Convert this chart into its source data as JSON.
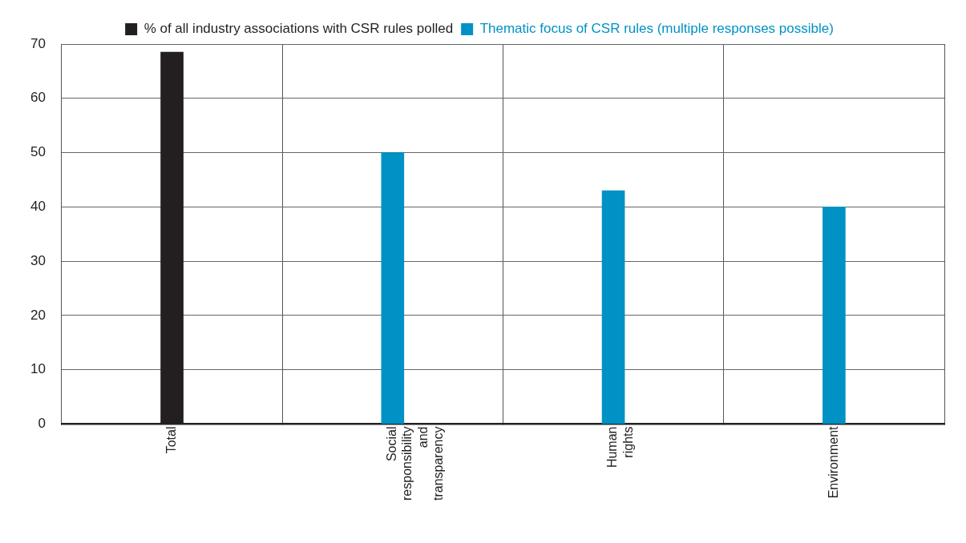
{
  "chart_data": {
    "type": "bar",
    "categories": [
      "Total",
      "Social responsibility and transparency",
      "Human rights",
      "Environment"
    ],
    "series": [
      {
        "name": "% of all industry associations with CSR rules polled",
        "color": "#231f20",
        "values": [
          68.5,
          null,
          null,
          null
        ]
      },
      {
        "name": "Thematic focus of CSR rules (multiple responses possible)",
        "color": "#0092c4",
        "values": [
          null,
          50,
          43,
          40
        ]
      }
    ],
    "ylim": [
      0,
      70
    ],
    "yticks": [
      0,
      10,
      20,
      30,
      40,
      50,
      60,
      70
    ],
    "grid": true,
    "legend": "top"
  }
}
